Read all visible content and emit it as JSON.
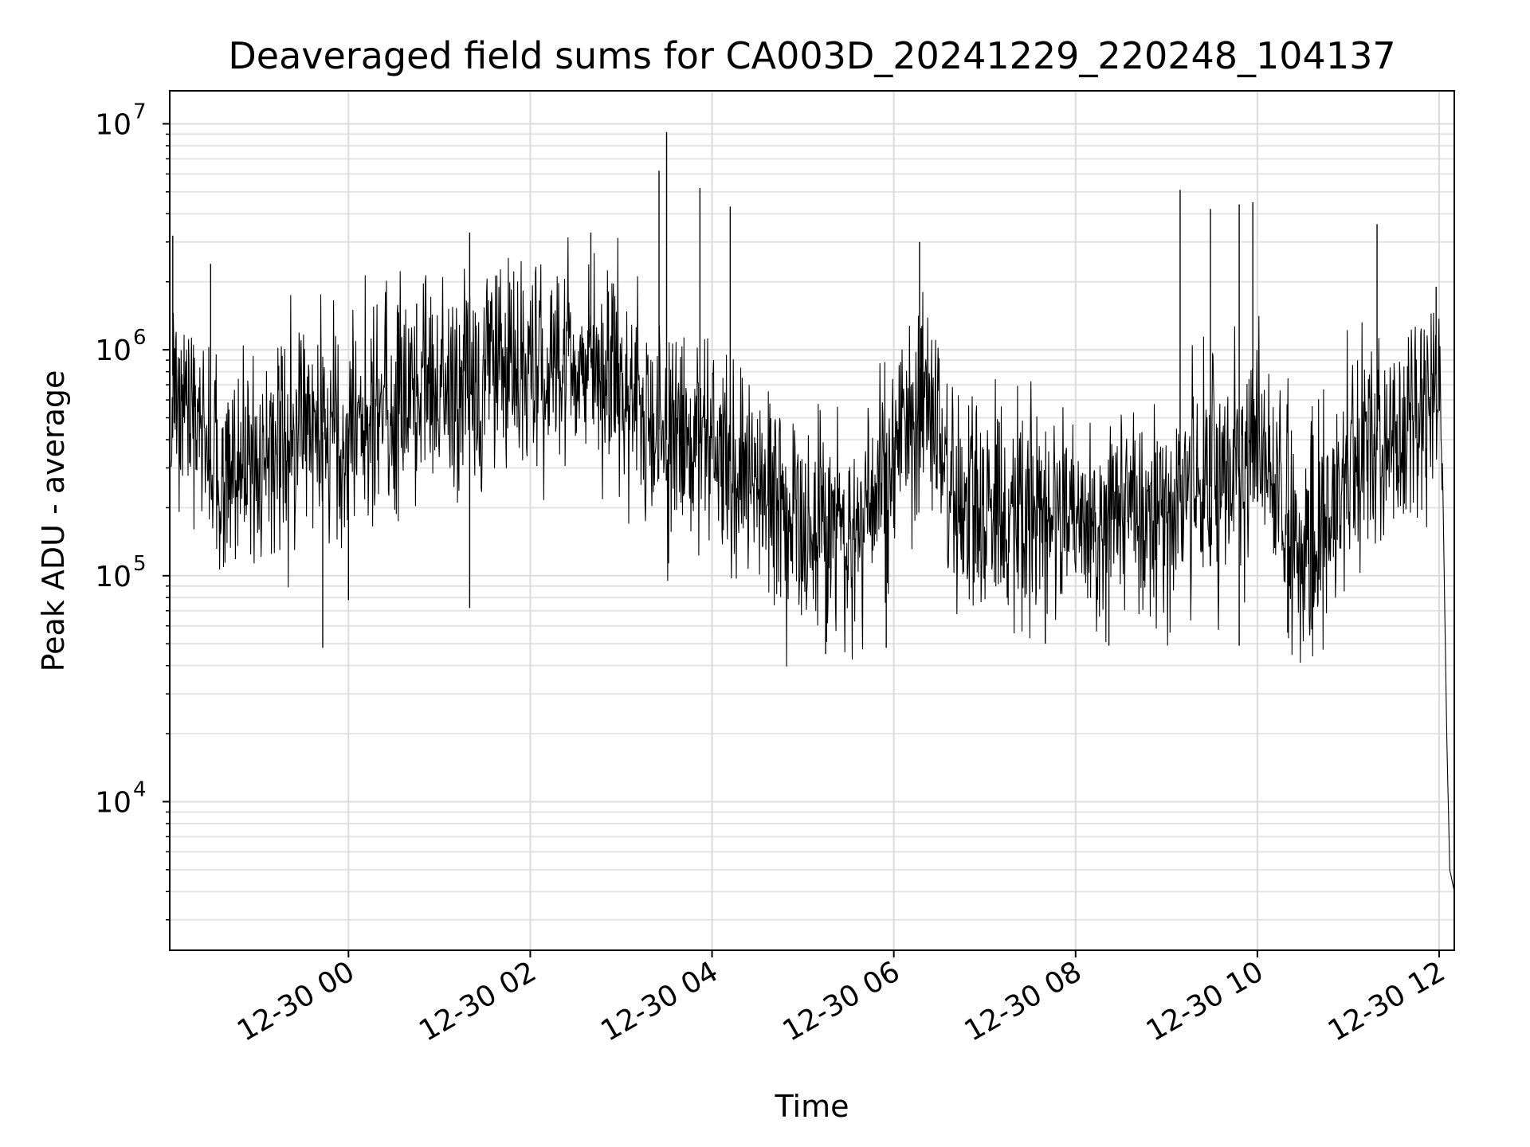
{
  "chart_data": {
    "type": "line",
    "title": "Deaveraged field sums for CA003D_20241229_220248_104137",
    "xlabel": "Time",
    "ylabel": "Peak ADU - average",
    "xscale": "time",
    "yscale": "log",
    "xlim": [
      "2024-12-29 22:02",
      "2024-12-30 12:10"
    ],
    "ylim": [
      2200,
      14000000
    ],
    "grid": {
      "major": true,
      "minor_y": true
    },
    "x_ticks": [
      {
        "t": "2024-12-30 00:00",
        "label": "12-30 00"
      },
      {
        "t": "2024-12-30 02:00",
        "label": "12-30 02"
      },
      {
        "t": "2024-12-30 04:00",
        "label": "12-30 04"
      },
      {
        "t": "2024-12-30 06:00",
        "label": "12-30 06"
      },
      {
        "t": "2024-12-30 08:00",
        "label": "12-30 08"
      },
      {
        "t": "2024-12-30 10:00",
        "label": "12-30 10"
      },
      {
        "t": "2024-12-30 12:00",
        "label": "12-30 12"
      }
    ],
    "y_ticks": [
      {
        "value": 10000,
        "base": "10",
        "exp": "4"
      },
      {
        "value": 100000,
        "base": "10",
        "exp": "5"
      },
      {
        "value": 1000000,
        "base": "10",
        "exp": "6"
      },
      {
        "value": 10000000,
        "base": "10",
        "exp": "7"
      }
    ],
    "series": [
      {
        "color": "#000000",
        "points": [
          [
            "2024-12-29 22:03",
            800000
          ],
          [
            "2024-12-29 22:15",
            500000
          ],
          [
            "2024-12-29 22:30",
            300000
          ],
          [
            "2024-12-29 23:00",
            320000
          ],
          [
            "2024-12-29 23:30",
            420000
          ],
          [
            "2024-12-30 00:00",
            450000
          ],
          [
            "2024-12-30 00:30",
            550000
          ],
          [
            "2024-12-30 01:00",
            700000
          ],
          [
            "2024-12-30 01:30",
            650000
          ],
          [
            "2024-12-30 02:00",
            800000
          ],
          [
            "2024-12-30 02:30",
            950000
          ],
          [
            "2024-12-30 03:00",
            750000
          ],
          [
            "2024-12-30 03:30",
            400000
          ],
          [
            "2024-12-30 04:00",
            380000
          ],
          [
            "2024-12-30 04:30",
            250000
          ],
          [
            "2024-12-30 05:00",
            160000
          ],
          [
            "2024-12-30 05:30",
            150000
          ],
          [
            "2024-12-30 06:00",
            300000
          ],
          [
            "2024-12-30 06:20",
            600000
          ],
          [
            "2024-12-30 06:40",
            250000
          ],
          [
            "2024-12-30 07:00",
            200000
          ],
          [
            "2024-12-30 07:30",
            190000
          ],
          [
            "2024-12-30 08:00",
            180000
          ],
          [
            "2024-12-30 08:30",
            160000
          ],
          [
            "2024-12-30 09:00",
            200000
          ],
          [
            "2024-12-30 09:30",
            250000
          ],
          [
            "2024-12-30 10:00",
            400000
          ],
          [
            "2024-12-30 10:30",
            130000
          ],
          [
            "2024-12-30 11:00",
            300000
          ],
          [
            "2024-12-30 11:30",
            400000
          ],
          [
            "2024-12-30 11:55",
            600000
          ],
          [
            "2024-12-30 12:01",
            1000000
          ],
          [
            "2024-12-30 12:05",
            20000
          ],
          [
            "2024-12-30 12:07",
            5000
          ],
          [
            "2024-12-30 12:10",
            4000
          ]
        ],
        "spikes": [
          [
            "2024-12-29 22:04",
            3200000
          ],
          [
            "2024-12-29 22:29",
            2400000
          ],
          [
            "2024-12-30 00:45",
            1600000
          ],
          [
            "2024-12-30 01:20",
            3300000
          ],
          [
            "2024-12-30 02:40",
            3300000
          ],
          [
            "2024-12-30 03:25",
            6200000
          ],
          [
            "2024-12-30 03:30",
            9200000
          ],
          [
            "2024-12-30 03:52",
            5200000
          ],
          [
            "2024-12-30 04:12",
            4300000
          ],
          [
            "2024-12-30 06:17",
            3000000
          ],
          [
            "2024-12-30 09:09",
            5100000
          ],
          [
            "2024-12-30 09:29",
            4200000
          ],
          [
            "2024-12-30 09:48",
            4400000
          ],
          [
            "2024-12-30 09:57",
            4500000
          ],
          [
            "2024-12-30 11:19",
            3600000
          ],
          [
            "2024-12-30 11:58",
            1900000
          ]
        ],
        "dips": [
          [
            "2024-12-29 23:43",
            48000
          ],
          [
            "2024-12-30 00:00",
            78000
          ],
          [
            "2024-12-30 01:20",
            72000
          ],
          [
            "2024-12-30 05:15",
            45000
          ],
          [
            "2024-12-30 05:55",
            48000
          ],
          [
            "2024-12-30 07:40",
            50000
          ],
          [
            "2024-12-30 08:22",
            49000
          ],
          [
            "2024-12-30 09:48",
            49000
          ],
          [
            "2024-12-30 10:20",
            56000
          ]
        ]
      }
    ]
  }
}
